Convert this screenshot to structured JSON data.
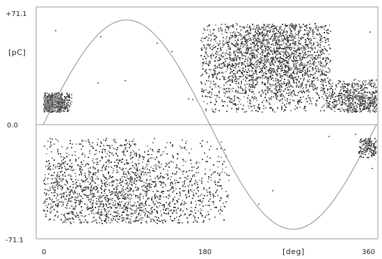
{
  "chart_data": {
    "type": "scatter",
    "title": "",
    "xlabel": "[deg]",
    "ylabel": "[pC]",
    "xlim": [
      0,
      360
    ],
    "ylim": [
      -71.1,
      71.1
    ],
    "x_tick_labels": [
      "0",
      "180",
      "360"
    ],
    "y_tick_labels": [
      "+71.1",
      "0.0",
      "-71.1"
    ],
    "grid": false,
    "legend": "none",
    "colors": {
      "background": "#ffffff",
      "frame": "#9a9a9a",
      "zero_line": "#9a9a9a",
      "reference_curve": "#8a8a8a",
      "pulses": "#555555"
    },
    "series": [
      {
        "kind": "reference-sine",
        "amplitude": 64,
        "period_deg": 360,
        "phase_deg": 0
      },
      {
        "kind": "pulse-cloud",
        "clusters": [
          {
            "x_range": [
              0,
              30
            ],
            "y_range": [
              8,
              20
            ],
            "peak_x": 8,
            "peak_y": 12,
            "density": "medium"
          },
          {
            "x_range": [
              170,
              310
            ],
            "y_range": [
              8,
              62
            ],
            "peak_x": 250,
            "peak_y": 45,
            "density": "high"
          },
          {
            "x_range": [
              300,
              360
            ],
            "y_range": [
              8,
              28
            ],
            "peak_x": 340,
            "peak_y": 16,
            "density": "medium"
          },
          {
            "x_range": [
              0,
              200
            ],
            "y_range": [
              -60,
              -8
            ],
            "peak_x": 70,
            "peak_y": -45,
            "density": "high"
          },
          {
            "x_range": [
              340,
              360
            ],
            "y_range": [
              -20,
              -8
            ],
            "peak_x": 350,
            "peak_y": -12,
            "density": "low"
          }
        ]
      }
    ]
  }
}
